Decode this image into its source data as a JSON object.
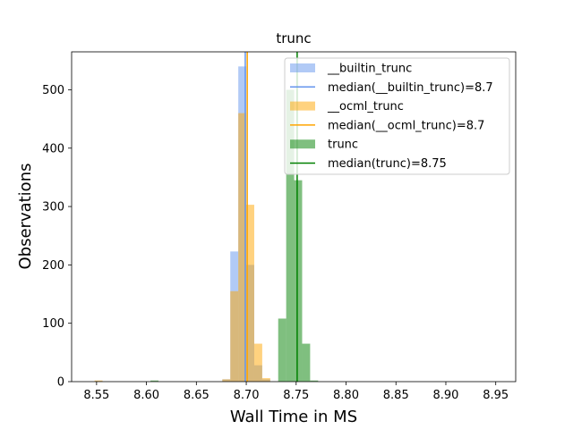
{
  "chart_data": {
    "type": "histogram",
    "title": "trunc",
    "xlabel": "Wall Time in MS",
    "ylabel": "Observations",
    "xlim": [
      8.525,
      8.97
    ],
    "ylim": [
      0,
      565
    ],
    "x_ticks": [
      8.55,
      8.6,
      8.65,
      8.7,
      8.75,
      8.8,
      8.85,
      8.9,
      8.95
    ],
    "x_tick_labels": [
      "8.55",
      "8.60",
      "8.65",
      "8.70",
      "8.75",
      "8.80",
      "8.85",
      "8.90",
      "8.95"
    ],
    "y_ticks": [
      0,
      100,
      200,
      300,
      400,
      500
    ],
    "y_tick_labels": [
      "0",
      "100",
      "200",
      "300",
      "400",
      "500"
    ],
    "grid": false,
    "legend_position": "top-right",
    "bin_width": 0.008,
    "series": [
      {
        "name": "__builtin_trunc",
        "color": "#6495ed",
        "opacity": 0.5,
        "bins": [
          {
            "x": 8.548,
            "count": 1
          },
          {
            "x": 8.676,
            "count": 4
          },
          {
            "x": 8.684,
            "count": 223
          },
          {
            "x": 8.692,
            "count": 540
          },
          {
            "x": 8.7,
            "count": 200
          },
          {
            "x": 8.708,
            "count": 28
          },
          {
            "x": 8.716,
            "count": 4
          }
        ]
      },
      {
        "name": "__ocml_trunc",
        "color": "#ffa500",
        "opacity": 0.5,
        "bins": [
          {
            "x": 8.548,
            "count": 2
          },
          {
            "x": 8.676,
            "count": 4
          },
          {
            "x": 8.684,
            "count": 155
          },
          {
            "x": 8.692,
            "count": 460
          },
          {
            "x": 8.7,
            "count": 303
          },
          {
            "x": 8.708,
            "count": 65
          },
          {
            "x": 8.716,
            "count": 6
          }
        ]
      },
      {
        "name": "trunc",
        "color": "#008000",
        "opacity": 0.5,
        "bins": [
          {
            "x": 8.604,
            "count": 2
          },
          {
            "x": 8.732,
            "count": 108
          },
          {
            "x": 8.74,
            "count": 500
          },
          {
            "x": 8.748,
            "count": 345
          },
          {
            "x": 8.756,
            "count": 65
          },
          {
            "x": 8.764,
            "count": 2
          }
        ]
      }
    ],
    "medians": [
      {
        "name": "median(__builtin_trunc)=8.7",
        "value": 8.699,
        "color": "#6495ed"
      },
      {
        "name": "median(__ocml_trunc)=8.7",
        "value": 8.701,
        "color": "#ffa500"
      },
      {
        "name": "median(trunc)=8.75",
        "value": 8.751,
        "color": "#008000"
      }
    ]
  }
}
